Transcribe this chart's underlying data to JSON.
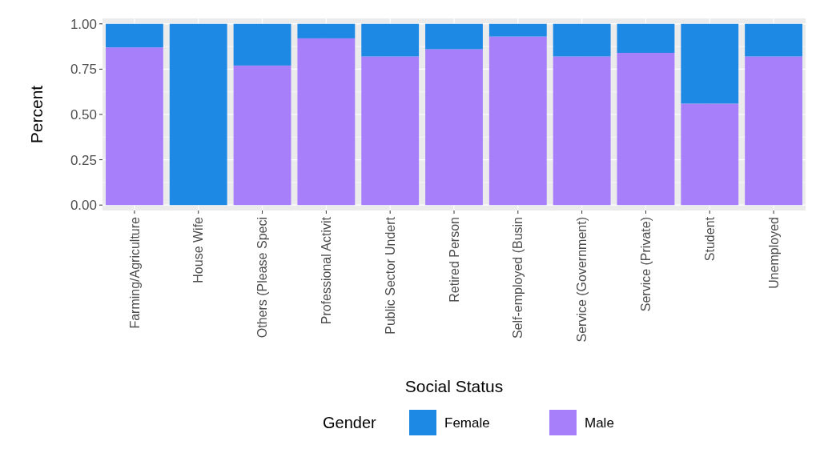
{
  "chart_data": {
    "type": "bar",
    "xlabel": "Social Status",
    "ylabel": "Percent",
    "legend_title": "Gender",
    "categories": [
      "Farming/Agriculture",
      "House Wife",
      "Others (Please Speci",
      "Professional Activit",
      "Public Sector Undert",
      "Retired Person",
      "Self-employed (Busin",
      "Service (Government)",
      "Service (Private)",
      "Student",
      "Unemployed"
    ],
    "series": [
      {
        "name": "Male",
        "color": "#a87ffb",
        "values": [
          0.87,
          0,
          0.77,
          0.92,
          0.82,
          0.86,
          0.93,
          0.82,
          0.84,
          0.56,
          0.82
        ]
      },
      {
        "name": "Female",
        "color": "#1e88e5",
        "values": [
          0.13,
          1.0,
          0.23,
          0.08,
          0.18,
          0.14,
          0.07,
          0.18,
          0.16,
          0.44,
          0.18
        ]
      }
    ],
    "stacked": true,
    "ylim": [
      -0.03,
      1.03
    ],
    "yticks": [
      {
        "value": 0,
        "label": "0.00"
      },
      {
        "value": 0.25,
        "label": "0.25"
      },
      {
        "value": 0.5,
        "label": "0.50"
      },
      {
        "value": 0.75,
        "label": "0.75"
      },
      {
        "value": 1,
        "label": "1.00"
      }
    ],
    "grid": true,
    "legend": "bottom"
  }
}
